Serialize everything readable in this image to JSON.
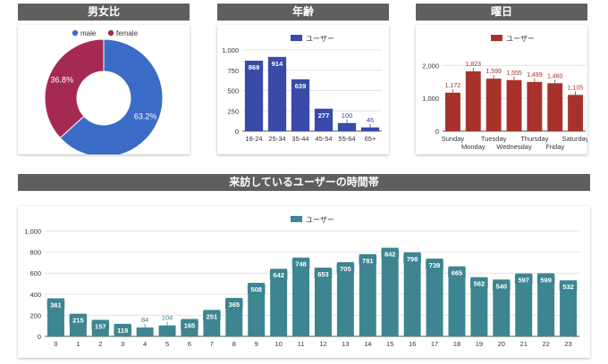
{
  "colors": {
    "header_bg": "#5f5f5f",
    "male": "#3a6bc7",
    "female": "#a52a52",
    "age_bar": "#3a4aa8",
    "weekday_bar": "#a8322b",
    "hour_bar": "#3d8591",
    "axis_text": "#333333",
    "gridline": "#e4e4e4"
  },
  "panels": {
    "gender": {
      "title": "男女比"
    },
    "age": {
      "title": "年齢"
    },
    "weekday": {
      "title": "曜日"
    },
    "hour": {
      "title": "来訪しているユーザーの時間帯"
    }
  },
  "chart_data": [
    {
      "id": "gender",
      "type": "pie",
      "style": "donut",
      "labels": [
        "male",
        "female"
      ],
      "values": [
        63.2,
        36.8
      ],
      "value_labels": [
        "63.2%",
        "36.8%"
      ],
      "legend": "top"
    },
    {
      "id": "age",
      "type": "bar",
      "categories": [
        "18-24",
        "25-34",
        "35-44",
        "45-54",
        "55-64",
        "65+"
      ],
      "series": [
        {
          "name": "ユーザー",
          "values": [
            868,
            914,
            639,
            277,
            100,
            46
          ]
        }
      ],
      "ylim": [
        0,
        1000
      ],
      "yticks": [
        0,
        250,
        500,
        750,
        1000
      ],
      "ytick_labels": [
        "0",
        "250",
        "500",
        "750",
        "1,000"
      ],
      "legend": "top",
      "grid": true
    },
    {
      "id": "weekday",
      "type": "bar",
      "categories": [
        "Sunday",
        "Monday",
        "Tuesday",
        "Wednesday",
        "Thursday",
        "Friday",
        "Saturday"
      ],
      "series": [
        {
          "name": "ユーザー",
          "values": [
            1172,
            1823,
            1599,
            1555,
            1499,
            1460,
            1105
          ]
        }
      ],
      "value_labels": [
        "1,172",
        "1,823",
        "1,599",
        "1,555",
        "1,499",
        "1,460",
        "1,105"
      ],
      "ylim": [
        0,
        2500
      ],
      "yticks": [
        0,
        1000,
        2000
      ],
      "ytick_labels": [
        "0",
        "1,000",
        "2,000"
      ],
      "legend": "top",
      "grid": true
    },
    {
      "id": "hour",
      "type": "bar",
      "categories": [
        "0",
        "1",
        "2",
        "3",
        "4",
        "5",
        "6",
        "7",
        "8",
        "9",
        "10",
        "11",
        "12",
        "13",
        "14",
        "15",
        "16",
        "17",
        "18",
        "19",
        "20",
        "21",
        "22",
        "23"
      ],
      "series": [
        {
          "name": "ユーザー",
          "values": [
            361,
            215,
            157,
            119,
            84,
            104,
            165,
            251,
            365,
            508,
            642,
            748,
            653,
            705,
            781,
            842,
            798,
            739,
            665,
            562,
            540,
            597,
            599,
            532
          ]
        }
      ],
      "ylim": [
        0,
        1000
      ],
      "yticks": [
        0,
        200,
        400,
        600,
        800,
        1000
      ],
      "ytick_labels": [
        "0",
        "200",
        "400",
        "600",
        "800",
        "1,000"
      ],
      "legend": "top",
      "grid": true
    }
  ]
}
